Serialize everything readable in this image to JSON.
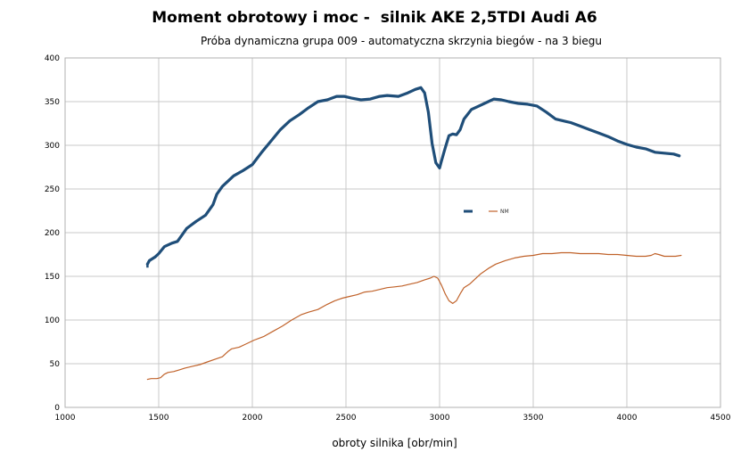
{
  "title": "Moment obrotowy i moc -  silnik AKE 2,5TDI Audi A6",
  "subtitle": "Próba dynamiczna grupa 009 - automatyczna skrzynia biegów - na 3 biegu",
  "chart_data": {
    "type": "line",
    "title": "Moment obrotowy i moc -  silnik AKE 2,5TDI Audi A6",
    "subtitle": "Próba dynamiczna grupa 009 - automatyczna skrzynia biegów - na 3 biegu",
    "xlabel": "obroty silnika [obr/min]",
    "ylabel": "",
    "xlim": [
      1000,
      4500
    ],
    "ylim": [
      0,
      400
    ],
    "xticks": [
      1000,
      1500,
      2000,
      2500,
      3000,
      3500,
      4000,
      4500
    ],
    "yticks": [
      0,
      50,
      100,
      150,
      200,
      250,
      300,
      350,
      400
    ],
    "grid": true,
    "legend_position": "center-right",
    "series": [
      {
        "name": "",
        "color": "#1f4e79",
        "x": [
          1440,
          1450,
          1480,
          1500,
          1530,
          1570,
          1600,
          1620,
          1650,
          1700,
          1750,
          1790,
          1810,
          1840,
          1870,
          1900,
          1950,
          2000,
          2050,
          2100,
          2150,
          2200,
          2250,
          2300,
          2350,
          2400,
          2450,
          2490,
          2530,
          2580,
          2630,
          2680,
          2720,
          2780,
          2830,
          2870,
          2900,
          2920,
          2940,
          2960,
          2980,
          3000,
          3010,
          3030,
          3050,
          3070,
          3090,
          3110,
          3130,
          3170,
          3210,
          3250,
          3290,
          3330,
          3370,
          3420,
          3470,
          3520,
          3570,
          3620,
          3660,
          3700,
          3750,
          3800,
          3850,
          3900,
          3950,
          4000,
          4050,
          4100,
          4150,
          4200,
          4250,
          4280
        ],
        "values": [
          164,
          168,
          172,
          176,
          184,
          188,
          190,
          196,
          205,
          213,
          220,
          232,
          244,
          253,
          259,
          265,
          271,
          278,
          292,
          305,
          318,
          328,
          335,
          343,
          350,
          352,
          356,
          356,
          354,
          352,
          353,
          356,
          357,
          356,
          360,
          364,
          366,
          360,
          338,
          302,
          280,
          274,
          282,
          297,
          311,
          313,
          312,
          318,
          330,
          341,
          345,
          349,
          353,
          352,
          350,
          348,
          347,
          345,
          338,
          330,
          328,
          326,
          322,
          318,
          314,
          310,
          305,
          301,
          298,
          296,
          292,
          291,
          290,
          288
        ],
        "extra_points": [
          [
            1440,
            160
          ]
        ]
      },
      {
        "name": "NM",
        "color": "#c0622a",
        "x": [
          1440,
          1460,
          1490,
          1510,
          1530,
          1550,
          1580,
          1610,
          1640,
          1680,
          1720,
          1760,
          1800,
          1840,
          1870,
          1890,
          1930,
          1970,
          2010,
          2060,
          2110,
          2160,
          2210,
          2260,
          2300,
          2350,
          2400,
          2440,
          2480,
          2520,
          2560,
          2600,
          2640,
          2680,
          2720,
          2760,
          2800,
          2840,
          2880,
          2920,
          2950,
          2970,
          2990,
          3010,
          3030,
          3050,
          3070,
          3090,
          3110,
          3130,
          3160,
          3190,
          3220,
          3260,
          3300,
          3350,
          3400,
          3450,
          3500,
          3550,
          3600,
          3650,
          3700,
          3750,
          3800,
          3850,
          3900,
          3950,
          4000,
          4050,
          4100,
          4130,
          4150,
          4170,
          4200,
          4230,
          4260,
          4290
        ],
        "values": [
          32,
          33,
          33,
          34,
          38,
          40,
          41,
          43,
          45,
          47,
          49,
          52,
          55,
          58,
          64,
          67,
          69,
          73,
          77,
          81,
          87,
          93,
          100,
          106,
          109,
          112,
          118,
          122,
          125,
          127,
          129,
          132,
          133,
          135,
          137,
          138,
          139,
          141,
          143,
          146,
          148,
          150,
          148,
          140,
          130,
          122,
          119,
          122,
          130,
          137,
          141,
          147,
          153,
          159,
          164,
          168,
          171,
          173,
          174,
          176,
          176,
          177,
          177,
          176,
          176,
          176,
          175,
          175,
          174,
          173,
          173,
          174,
          176,
          175,
          173,
          173,
          173,
          174
        ]
      }
    ]
  }
}
